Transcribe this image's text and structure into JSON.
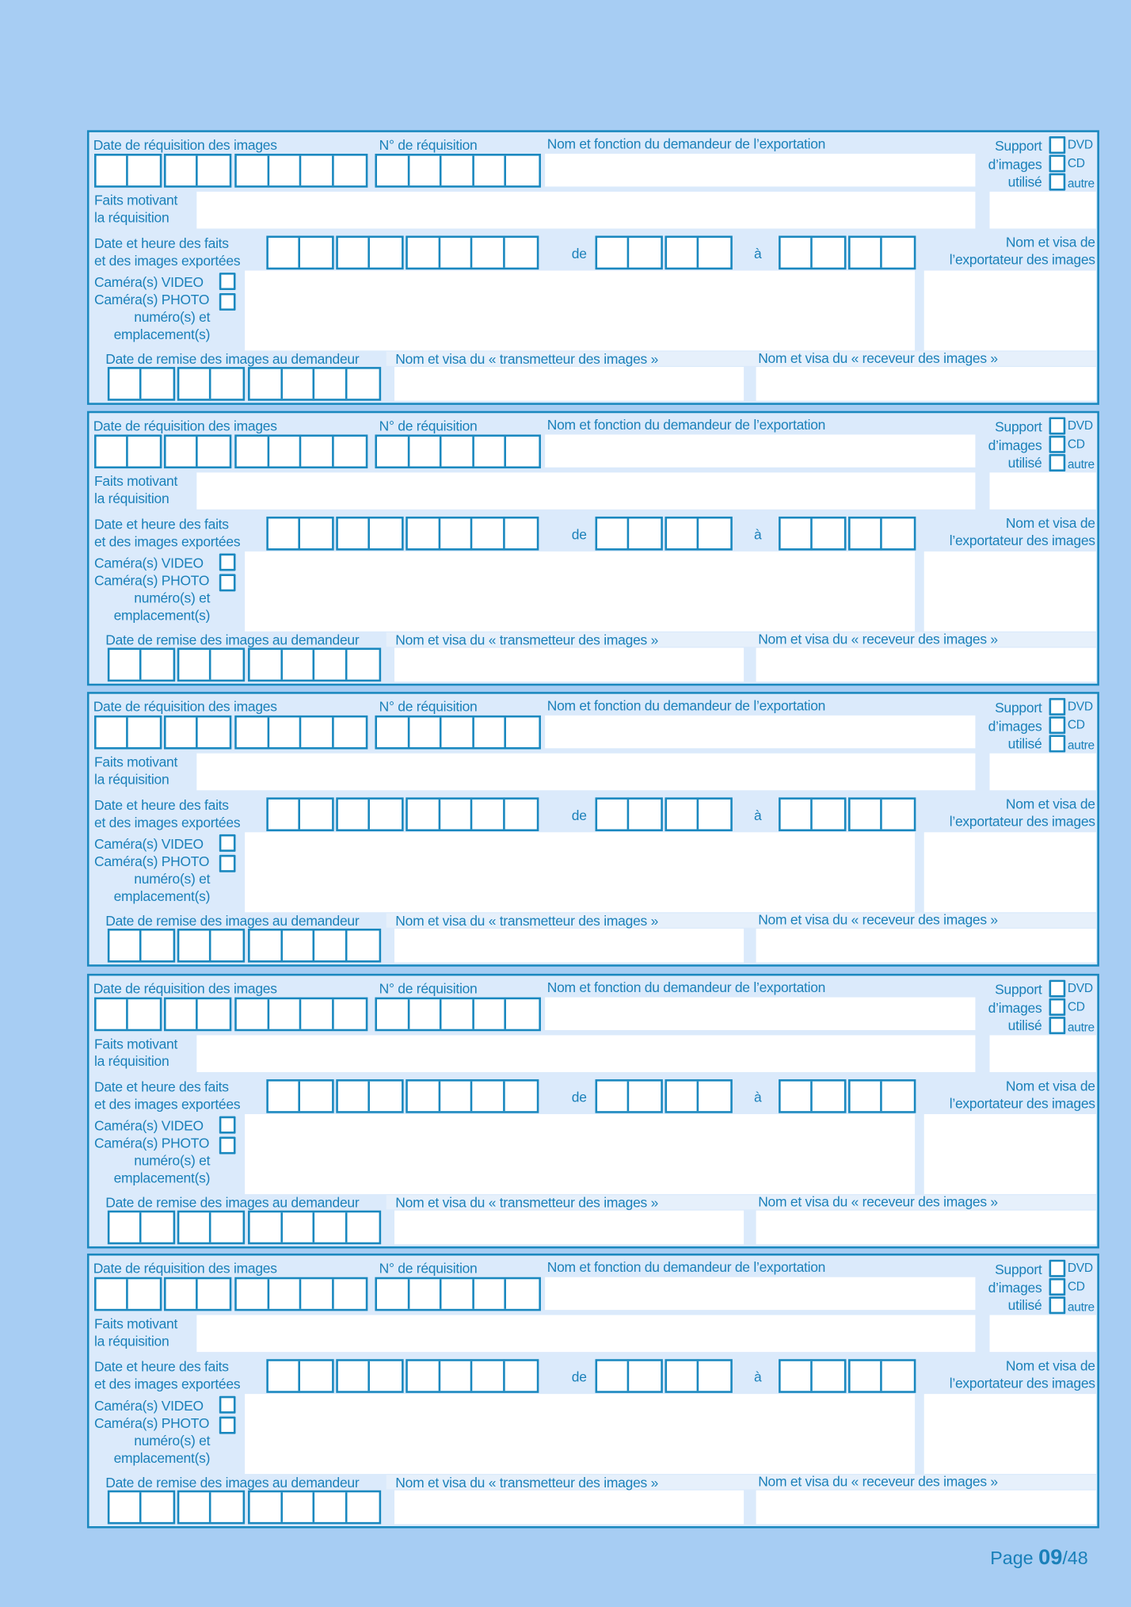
{
  "form": {
    "date_requisition_label": "Date de réquisition des images",
    "num_requisition_label": "N° de réquisition",
    "demandeur_label": "Nom  et fonction du demandeur de l’exportation",
    "support_label_1": "Support",
    "support_label_2": "d’images",
    "support_label_3": "utilisé",
    "support_options": [
      "DVD",
      "CD",
      "autre"
    ],
    "faits_label_1": "Faits motivant",
    "faits_label_2": "la réquisition",
    "date_heure_label_1": "Date et heure des faits",
    "date_heure_label_2": "et des images exportées",
    "de_label": "de",
    "a_label": "à",
    "exportateur_label_1": "Nom et visa de",
    "exportateur_label_2": "l’exportateur des images",
    "camera_video_label": "Caméra(s) VIDEO",
    "camera_photo_label": "Caméra(s) PHOTO",
    "numero_label_1": "numéro(s) et",
    "numero_label_2": "emplacement(s)",
    "date_remise_label": "Date de remise des images au demandeur",
    "transmetteur_label": "Nom et visa  du « transmetteur des images »",
    "receveur_label": "Nom et visa du « receveur des images »"
  },
  "page": {
    "prefix": "Page ",
    "current": "09",
    "total": "/48"
  },
  "colors": {
    "background": "#a7cdf3",
    "form": "#dbeafb",
    "accent": "#1a88bf"
  }
}
